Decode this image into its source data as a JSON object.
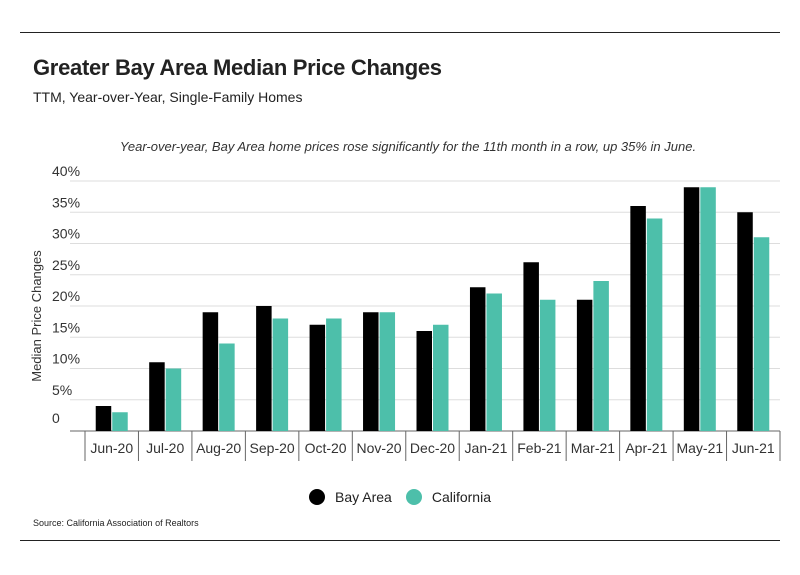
{
  "header": {
    "title": "Greater Bay Area Median Price Changes",
    "subtitle": "TTM, Year-over-Year, Single-Family Homes"
  },
  "footer": {
    "source": "Source:  California Association of Realtors"
  },
  "colors": {
    "bay_area": "#000000",
    "california": "#4dbfaa",
    "grid": "#dddddd",
    "axis": "#666666"
  },
  "chart_data": {
    "type": "bar",
    "title": "Greater Bay Area Median Price Changes",
    "subtitle": "TTM, Year-over-Year, Single-Family Homes",
    "annotation": "Year-over-year, Bay Area home prices rose significantly for the 11th month in a row, up 35% in June.",
    "xlabel": "",
    "ylabel": "Median Price Changes",
    "ylim": [
      0,
      40
    ],
    "yticks": [
      0,
      5,
      10,
      15,
      20,
      25,
      30,
      35,
      40
    ],
    "ytick_labels": [
      "0",
      "5%",
      "10%",
      "15%",
      "20%",
      "25%",
      "30%",
      "35%",
      "40%"
    ],
    "grid": true,
    "legend_position": "bottom-center",
    "categories": [
      "Jun-20",
      "Jul-20",
      "Aug-20",
      "Sep-20",
      "Oct-20",
      "Nov-20",
      "Dec-20",
      "Jan-21",
      "Feb-21",
      "Mar-21",
      "Apr-21",
      "May-21",
      "Jun-21"
    ],
    "series": [
      {
        "name": "Bay Area",
        "values": [
          4,
          11,
          19,
          20,
          17,
          19,
          16,
          23,
          27,
          21,
          36,
          39,
          35
        ]
      },
      {
        "name": "California",
        "values": [
          3,
          10,
          14,
          18,
          18,
          19,
          17,
          22,
          21,
          24,
          34,
          39,
          31
        ]
      }
    ]
  }
}
